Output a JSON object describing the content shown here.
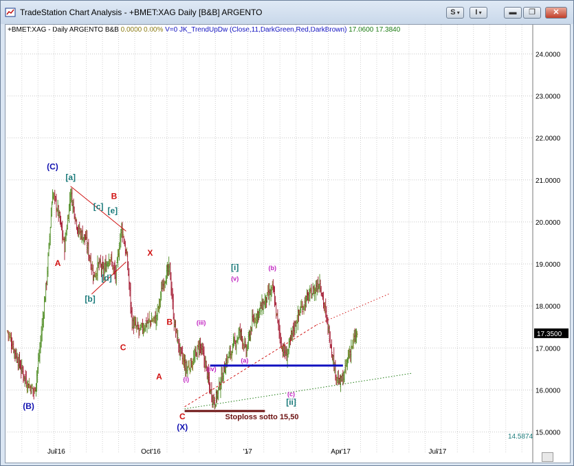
{
  "window": {
    "title": "TradeStation Chart Analysis - +BMET:XAG Daily [B&B] ARGENTO",
    "buttons": {
      "symbol_s": "S",
      "symbol_i": "I",
      "dropdown": "▾",
      "minimize": "▬",
      "maximize": "❐",
      "close": "✕"
    }
  },
  "status": {
    "symbol": "+BMET:XAG - Daily",
    "name": "ARGENTO",
    "source": "B&B",
    "change": "0.0000",
    "change_pct": "0.00%",
    "volume": "V=0",
    "indicator": "JK_TrendUpDw (Close,11,DarkGreen,Red,DarkBrown)",
    "ind_val1": "17.0600",
    "ind_val2": "17.3840"
  },
  "chart_data": {
    "type": "bar",
    "instrument": "+BMET:XAG Daily",
    "y_ticks": [
      "24.0000",
      "23.0000",
      "22.0000",
      "21.0000",
      "20.0000",
      "19.0000",
      "18.0000",
      "17.0000",
      "16.0000",
      "15.0000"
    ],
    "x_ticks": [
      "Jul'16",
      "Oct'16",
      "'17",
      "Apr'17",
      "Jul'17",
      "Oct'17"
    ],
    "last_price": "17.3500",
    "low_marker": "14.5874",
    "ylim": [
      14.55,
      24.4
    ],
    "grid": true,
    "colors": {
      "up": "#4a8a1e",
      "down": "#a0112a",
      "neutral": "#8d7a2a"
    },
    "key_closes": [
      {
        "d": 0,
        "v": 17.4
      },
      {
        "d": 12,
        "v": 16.8
      },
      {
        "d": 25,
        "v": 16.2
      },
      {
        "d": 36,
        "v": 15.95
      },
      {
        "d": 42,
        "v": 16.8
      },
      {
        "d": 52,
        "v": 18.6
      },
      {
        "d": 60,
        "v": 20.7
      },
      {
        "d": 68,
        "v": 20.2
      },
      {
        "d": 76,
        "v": 19.4
      },
      {
        "d": 84,
        "v": 20.7
      },
      {
        "d": 94,
        "v": 19.8
      },
      {
        "d": 104,
        "v": 19.6
      },
      {
        "d": 115,
        "v": 18.7
      },
      {
        "d": 122,
        "v": 19.0
      },
      {
        "d": 128,
        "v": 18.8
      },
      {
        "d": 136,
        "v": 19.2
      },
      {
        "d": 144,
        "v": 18.7
      },
      {
        "d": 152,
        "v": 19.9
      },
      {
        "d": 160,
        "v": 19.0
      },
      {
        "d": 166,
        "v": 17.6
      },
      {
        "d": 176,
        "v": 17.4
      },
      {
        "d": 186,
        "v": 17.6
      },
      {
        "d": 198,
        "v": 17.7
      },
      {
        "d": 208,
        "v": 18.6
      },
      {
        "d": 216,
        "v": 18.9
      },
      {
        "d": 222,
        "v": 17.6
      },
      {
        "d": 230,
        "v": 16.9
      },
      {
        "d": 238,
        "v": 16.5
      },
      {
        "d": 248,
        "v": 16.7
      },
      {
        "d": 256,
        "v": 17.1
      },
      {
        "d": 264,
        "v": 16.6
      },
      {
        "d": 270,
        "v": 16.0
      },
      {
        "d": 276,
        "v": 15.7
      },
      {
        "d": 284,
        "v": 16.2
      },
      {
        "d": 292,
        "v": 16.7
      },
      {
        "d": 300,
        "v": 17.0
      },
      {
        "d": 310,
        "v": 17.4
      },
      {
        "d": 318,
        "v": 16.9
      },
      {
        "d": 326,
        "v": 17.6
      },
      {
        "d": 336,
        "v": 17.9
      },
      {
        "d": 346,
        "v": 18.2
      },
      {
        "d": 354,
        "v": 18.4
      },
      {
        "d": 360,
        "v": 17.6
      },
      {
        "d": 366,
        "v": 17.0
      },
      {
        "d": 372,
        "v": 16.8
      },
      {
        "d": 380,
        "v": 17.4
      },
      {
        "d": 390,
        "v": 17.9
      },
      {
        "d": 400,
        "v": 18.2
      },
      {
        "d": 410,
        "v": 18.4
      },
      {
        "d": 416,
        "v": 18.6
      },
      {
        "d": 422,
        "v": 18.0
      },
      {
        "d": 430,
        "v": 17.2
      },
      {
        "d": 436,
        "v": 16.5
      },
      {
        "d": 442,
        "v": 16.15
      },
      {
        "d": 448,
        "v": 16.3
      },
      {
        "d": 454,
        "v": 16.8
      },
      {
        "d": 460,
        "v": 17.1
      },
      {
        "d": 466,
        "v": 17.35
      }
    ],
    "wave_labels": [
      {
        "text": "(C)",
        "d": 60,
        "v": 21.25,
        "color": "#1010b0"
      },
      {
        "text": "[a]",
        "d": 84,
        "v": 21.0,
        "color": "#1a7a7a"
      },
      {
        "text": "A",
        "d": 67,
        "v": 18.95,
        "color": "#d01010"
      },
      {
        "text": "(B)",
        "d": 28,
        "v": 15.55,
        "color": "#1010b0"
      },
      {
        "text": "B",
        "d": 142,
        "v": 20.55,
        "color": "#d01010"
      },
      {
        "text": "[c]",
        "d": 121,
        "v": 20.3,
        "color": "#1a7a7a"
      },
      {
        "text": "[e]",
        "d": 140,
        "v": 20.2,
        "color": "#1a7a7a"
      },
      {
        "text": "[b]",
        "d": 110,
        "v": 18.1,
        "color": "#1a7a7a"
      },
      {
        "text": "[d]",
        "d": 132,
        "v": 18.6,
        "color": "#1a7a7a"
      },
      {
        "text": "C",
        "d": 154,
        "v": 16.95,
        "color": "#d01010"
      },
      {
        "text": "X",
        "d": 190,
        "v": 19.2,
        "color": "#d01010"
      },
      {
        "text": "B",
        "d": 216,
        "v": 17.55,
        "color": "#d01010"
      },
      {
        "text": "A",
        "d": 202,
        "v": 16.25,
        "color": "#d01010"
      },
      {
        "text": "(i)",
        "d": 238,
        "v": 16.2,
        "color": "#c020c0"
      },
      {
        "text": "(iii)",
        "d": 258,
        "v": 17.55,
        "color": "#c020c0"
      },
      {
        "text": "(iv)",
        "d": 272,
        "v": 16.45,
        "color": "#c020c0"
      },
      {
        "text": "(v)",
        "d": 303,
        "v": 18.6,
        "color": "#c020c0"
      },
      {
        "text": "[i]",
        "d": 303,
        "v": 18.85,
        "color": "#1a7a7a"
      },
      {
        "text": "(a)",
        "d": 316,
        "v": 16.65,
        "color": "#c020c0"
      },
      {
        "text": "(b)",
        "d": 353,
        "v": 18.85,
        "color": "#c020c0"
      },
      {
        "text": "(c)",
        "d": 378,
        "v": 15.85,
        "color": "#c020c0"
      },
      {
        "text": "[ii]",
        "d": 378,
        "v": 15.65,
        "color": "#1a7a7a"
      },
      {
        "text": "C",
        "d": 233,
        "v": 15.3,
        "color": "#d01010"
      },
      {
        "text": "(X)",
        "d": 233,
        "v": 15.05,
        "color": "#1010b0"
      },
      {
        "text": "Stoploss  sotto 15,50",
        "d": 290,
        "v": 15.3,
        "color": "#6b1010"
      }
    ]
  }
}
